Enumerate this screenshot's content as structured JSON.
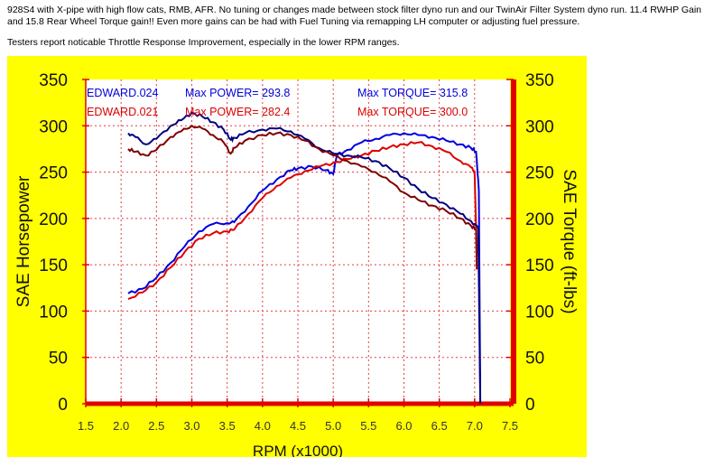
{
  "page": {
    "intro_text": "928S4 with X-pipe with high flow cats, RMB, AFR. No tuning or changes made between stock filter dyno run and our TwinAir Filter System dyno run. 11.4 RWHP Gain and 15.8 Rear Wheel Torque gain!! Even more gains can be had with Fuel Tuning via remapping LH computer or adjusting fuel pressure.",
    "note_text": "Testers report noticable Throttle Response Improvement, especially in the lower RPM ranges."
  },
  "colors": {
    "panel_bg": "#ffff00",
    "plot_bg": "#ffffff",
    "axis_red": "#e00000",
    "grid": "#e04040"
  },
  "chart_data": {
    "type": "line",
    "xlabel": "RPM (x1000)",
    "ylabel": "SAE Horsepower",
    "y2label": "SAE Torque (ft-lbs)",
    "xlim": [
      1.5,
      7.5
    ],
    "ylim": [
      0,
      350
    ],
    "y2lim": [
      0,
      350
    ],
    "xticks": [
      "1.5",
      "2.0",
      "2.5",
      "3.0",
      "3.5",
      "4.0",
      "4.5",
      "5.0",
      "5.5",
      "6.0",
      "6.5",
      "7.0",
      "7.5"
    ],
    "yticks": [
      "0",
      "50",
      "100",
      "150",
      "200",
      "250",
      "300",
      "350"
    ],
    "legend": [
      {
        "run": "EDWARD.024",
        "power": "Max POWER= 293.8",
        "torque": "Max TORQUE= 315.8",
        "color": "#0000dd"
      },
      {
        "run": "EDWARD.021",
        "power": "Max POWER= 282.4",
        "torque": "Max TORQUE= 300.0",
        "color": "#dd0000"
      }
    ],
    "series": [
      {
        "run": "EDWARD.024",
        "quantity": "Horsepower",
        "color": "#0000dd",
        "x": [
          2.1,
          2.3,
          2.5,
          2.7,
          2.9,
          3.1,
          3.3,
          3.5,
          3.6,
          3.8,
          4.0,
          4.2,
          4.4,
          4.5,
          4.7,
          4.9,
          5.0,
          5.05,
          5.2,
          5.4,
          5.6,
          5.8,
          6.0,
          6.2,
          6.4,
          6.6,
          6.8,
          6.95,
          7.02,
          7.06,
          7.08
        ],
        "y": [
          119,
          124,
          136,
          152,
          170,
          186,
          194,
          195,
          196,
          213,
          230,
          242,
          252,
          254,
          256,
          252,
          248,
          268,
          274,
          282,
          286,
          290,
          292,
          290,
          288,
          284,
          280,
          276,
          272,
          230,
          0
        ]
      },
      {
        "run": "EDWARD.021",
        "quantity": "Horsepower",
        "color": "#dd0000",
        "x": [
          2.1,
          2.3,
          2.5,
          2.7,
          2.9,
          3.1,
          3.3,
          3.5,
          3.6,
          3.8,
          4.0,
          4.2,
          4.4,
          4.6,
          4.8,
          5.0,
          5.2,
          5.4,
          5.6,
          5.8,
          6.0,
          6.2,
          6.4,
          6.6,
          6.8,
          6.95,
          7.0,
          7.03
        ],
        "y": [
          113,
          120,
          131,
          147,
          164,
          178,
          184,
          186,
          188,
          205,
          222,
          235,
          244,
          251,
          256,
          260,
          264,
          268,
          273,
          277,
          280,
          282,
          278,
          272,
          262,
          255,
          250,
          160
        ]
      },
      {
        "run": "EDWARD.024",
        "quantity": "Torque",
        "color": "#000080",
        "x": [
          2.1,
          2.2,
          2.35,
          2.5,
          2.7,
          2.85,
          3.0,
          3.15,
          3.3,
          3.45,
          3.55,
          3.6,
          3.75,
          4.0,
          4.2,
          4.4,
          4.6,
          4.8,
          5.0,
          5.2,
          5.4,
          5.6,
          5.8,
          6.0,
          6.2,
          6.4,
          6.6,
          6.8,
          6.95,
          7.05,
          7.08
        ],
        "y": [
          292,
          288,
          280,
          286,
          300,
          306,
          314,
          310,
          304,
          296,
          285,
          287,
          292,
          296,
          297,
          294,
          286,
          276,
          270,
          268,
          266,
          262,
          254,
          244,
          232,
          222,
          215,
          205,
          197,
          190,
          0
        ]
      },
      {
        "run": "EDWARD.021",
        "quantity": "Torque",
        "color": "#800000",
        "x": [
          2.1,
          2.2,
          2.35,
          2.5,
          2.7,
          2.85,
          3.0,
          3.15,
          3.3,
          3.45,
          3.55,
          3.6,
          3.75,
          4.0,
          4.2,
          4.4,
          4.6,
          4.8,
          5.0,
          5.2,
          5.4,
          5.6,
          5.8,
          6.0,
          6.2,
          6.4,
          6.6,
          6.8,
          6.95,
          7.02,
          7.03
        ],
        "y": [
          275,
          272,
          268,
          274,
          288,
          294,
          300,
          297,
          290,
          282,
          270,
          276,
          284,
          290,
          292,
          290,
          284,
          275,
          268,
          262,
          256,
          250,
          240,
          228,
          220,
          214,
          208,
          200,
          192,
          188,
          145
        ]
      }
    ]
  }
}
